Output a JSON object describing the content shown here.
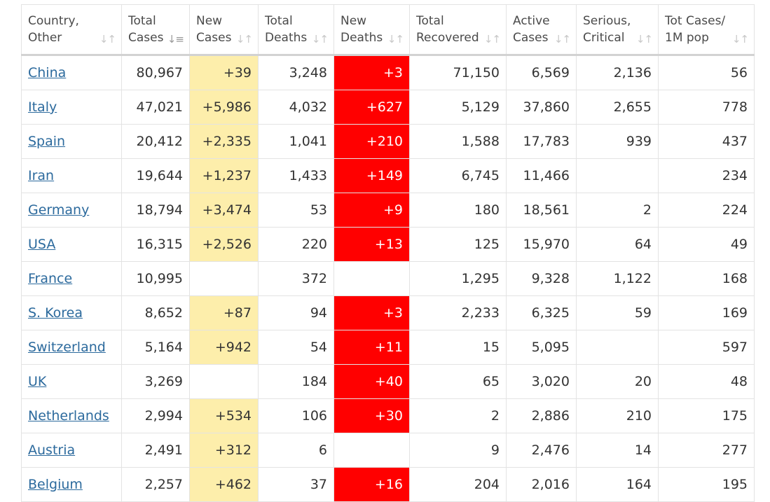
{
  "colors": {
    "new_cases_bg": "#fdeeab",
    "new_deaths_bg": "#ff0000",
    "link": "#2c6a9d"
  },
  "headers": [
    {
      "line1": "Country,",
      "line2": "Other",
      "sort_icon": "sort-arrows-icon"
    },
    {
      "line1": "Total",
      "line2": "Cases",
      "sort_icon": "sort-descending-icon"
    },
    {
      "line1": "New",
      "line2": "Cases",
      "sort_icon": "sort-arrows-icon"
    },
    {
      "line1": "Total",
      "line2": "Deaths",
      "sort_icon": "sort-arrows-icon"
    },
    {
      "line1": "New",
      "line2": "Deaths",
      "sort_icon": "sort-arrows-icon"
    },
    {
      "line1": "Total",
      "line2": "Recovered",
      "sort_icon": "sort-arrows-icon"
    },
    {
      "line1": "Active",
      "line2": "Cases",
      "sort_icon": "sort-arrows-icon"
    },
    {
      "line1": "Serious,",
      "line2": "Critical",
      "sort_icon": "sort-arrows-icon"
    },
    {
      "line1": "Tot Cases/",
      "line2": "1M pop",
      "sort_icon": "sort-arrows-icon"
    }
  ],
  "rows": [
    {
      "country": "China",
      "total_cases": "80,967",
      "new_cases": "+39",
      "total_deaths": "3,248",
      "new_deaths": "+3",
      "total_recovered": "71,150",
      "active_cases": "6,569",
      "serious_critical": "2,136",
      "tot_cases_per_1m": "56"
    },
    {
      "country": "Italy",
      "total_cases": "47,021",
      "new_cases": "+5,986",
      "total_deaths": "4,032",
      "new_deaths": "+627",
      "total_recovered": "5,129",
      "active_cases": "37,860",
      "serious_critical": "2,655",
      "tot_cases_per_1m": "778"
    },
    {
      "country": "Spain",
      "total_cases": "20,412",
      "new_cases": "+2,335",
      "total_deaths": "1,041",
      "new_deaths": "+210",
      "total_recovered": "1,588",
      "active_cases": "17,783",
      "serious_critical": "939",
      "tot_cases_per_1m": "437"
    },
    {
      "country": "Iran",
      "total_cases": "19,644",
      "new_cases": "+1,237",
      "total_deaths": "1,433",
      "new_deaths": "+149",
      "total_recovered": "6,745",
      "active_cases": "11,466",
      "serious_critical": "",
      "tot_cases_per_1m": "234"
    },
    {
      "country": "Germany",
      "total_cases": "18,794",
      "new_cases": "+3,474",
      "total_deaths": "53",
      "new_deaths": "+9",
      "total_recovered": "180",
      "active_cases": "18,561",
      "serious_critical": "2",
      "tot_cases_per_1m": "224"
    },
    {
      "country": "USA",
      "total_cases": "16,315",
      "new_cases": "+2,526",
      "total_deaths": "220",
      "new_deaths": "+13",
      "total_recovered": "125",
      "active_cases": "15,970",
      "serious_critical": "64",
      "tot_cases_per_1m": "49"
    },
    {
      "country": "France",
      "total_cases": "10,995",
      "new_cases": "",
      "total_deaths": "372",
      "new_deaths": "",
      "total_recovered": "1,295",
      "active_cases": "9,328",
      "serious_critical": "1,122",
      "tot_cases_per_1m": "168"
    },
    {
      "country": "S. Korea",
      "total_cases": "8,652",
      "new_cases": "+87",
      "total_deaths": "94",
      "new_deaths": "+3",
      "total_recovered": "2,233",
      "active_cases": "6,325",
      "serious_critical": "59",
      "tot_cases_per_1m": "169"
    },
    {
      "country": "Switzerland",
      "total_cases": "5,164",
      "new_cases": "+942",
      "total_deaths": "54",
      "new_deaths": "+11",
      "total_recovered": "15",
      "active_cases": "5,095",
      "serious_critical": "",
      "tot_cases_per_1m": "597"
    },
    {
      "country": "UK",
      "total_cases": "3,269",
      "new_cases": "",
      "total_deaths": "184",
      "new_deaths": "+40",
      "total_recovered": "65",
      "active_cases": "3,020",
      "serious_critical": "20",
      "tot_cases_per_1m": "48"
    },
    {
      "country": "Netherlands",
      "total_cases": "2,994",
      "new_cases": "+534",
      "total_deaths": "106",
      "new_deaths": "+30",
      "total_recovered": "2",
      "active_cases": "2,886",
      "serious_critical": "210",
      "tot_cases_per_1m": "175"
    },
    {
      "country": "Austria",
      "total_cases": "2,491",
      "new_cases": "+312",
      "total_deaths": "6",
      "new_deaths": "",
      "total_recovered": "9",
      "active_cases": "2,476",
      "serious_critical": "14",
      "tot_cases_per_1m": "277"
    },
    {
      "country": "Belgium",
      "total_cases": "2,257",
      "new_cases": "+462",
      "total_deaths": "37",
      "new_deaths": "+16",
      "total_recovered": "204",
      "active_cases": "2,016",
      "serious_critical": "164",
      "tot_cases_per_1m": "195"
    }
  ]
}
